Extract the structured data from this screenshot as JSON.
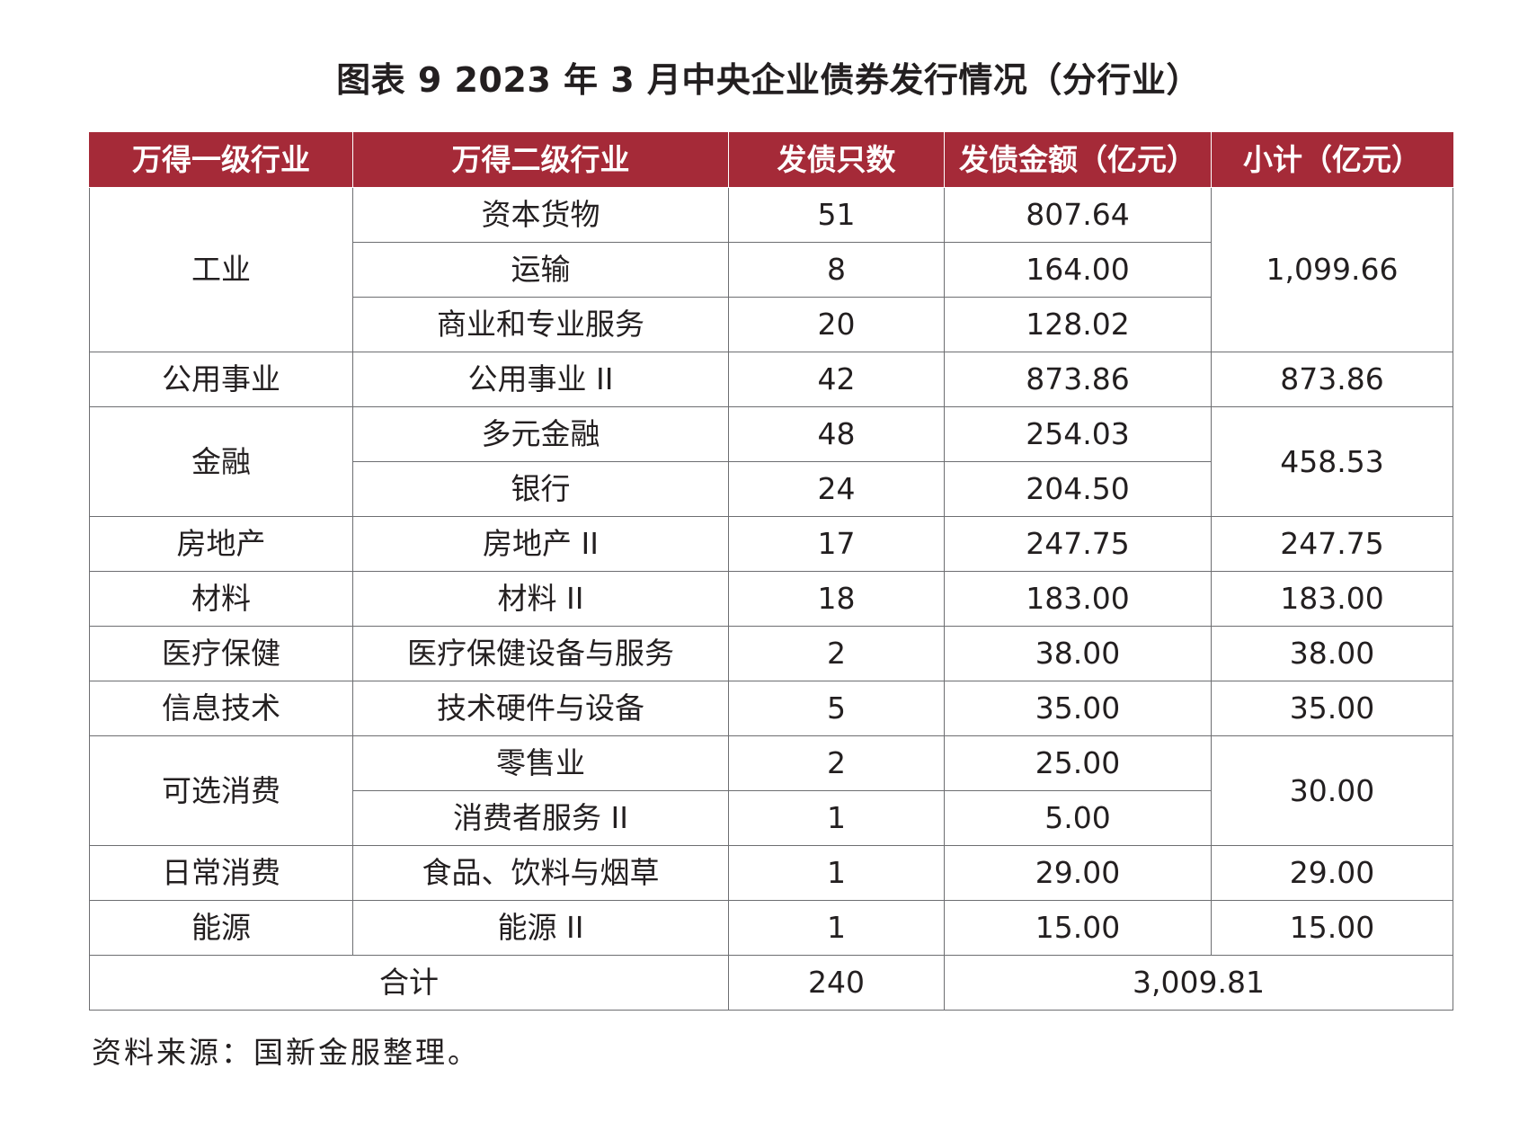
{
  "title": "图表 9  2023 年 3 月中央企业债券发行情况（分行业）",
  "table": {
    "headers": [
      "万得一级行业",
      "万得二级行业",
      "发债只数",
      "发债金额（亿元）",
      "小计（亿元）"
    ],
    "groups": [
      {
        "level1": "工业",
        "subtotal": "1,099.66",
        "rows": [
          {
            "level2": "资本货物",
            "count": "51",
            "amount": "807.64"
          },
          {
            "level2": "运输",
            "count": "8",
            "amount": "164.00"
          },
          {
            "level2": "商业和专业服务",
            "count": "20",
            "amount": "128.02"
          }
        ]
      },
      {
        "level1": "公用事业",
        "subtotal": "873.86",
        "rows": [
          {
            "level2": "公用事业 II",
            "count": "42",
            "amount": "873.86"
          }
        ]
      },
      {
        "level1": "金融",
        "subtotal": "458.53",
        "rows": [
          {
            "level2": "多元金融",
            "count": "48",
            "amount": "254.03"
          },
          {
            "level2": "银行",
            "count": "24",
            "amount": "204.50"
          }
        ]
      },
      {
        "level1": "房地产",
        "subtotal": "247.75",
        "rows": [
          {
            "level2": "房地产 II",
            "count": "17",
            "amount": "247.75"
          }
        ]
      },
      {
        "level1": "材料",
        "subtotal": "183.00",
        "rows": [
          {
            "level2": "材料 II",
            "count": "18",
            "amount": "183.00"
          }
        ]
      },
      {
        "level1": "医疗保健",
        "subtotal": "38.00",
        "rows": [
          {
            "level2": "医疗保健设备与服务",
            "count": "2",
            "amount": "38.00"
          }
        ]
      },
      {
        "level1": "信息技术",
        "subtotal": "35.00",
        "rows": [
          {
            "level2": "技术硬件与设备",
            "count": "5",
            "amount": "35.00"
          }
        ]
      },
      {
        "level1": "可选消费",
        "subtotal": "30.00",
        "rows": [
          {
            "level2": "零售业",
            "count": "2",
            "amount": "25.00"
          },
          {
            "level2": "消费者服务 II",
            "count": "1",
            "amount": "5.00"
          }
        ]
      },
      {
        "level1": "日常消费",
        "subtotal": "29.00",
        "rows": [
          {
            "level2": "食品、饮料与烟草",
            "count": "1",
            "amount": "29.00"
          }
        ]
      },
      {
        "level1": "能源",
        "subtotal": "15.00",
        "rows": [
          {
            "level2": "能源 II",
            "count": "1",
            "amount": "15.00"
          }
        ]
      }
    ],
    "total": {
      "label": "合计",
      "count": "240",
      "amount": "3,009.81"
    }
  },
  "source": "资料来源：国新金服整理。",
  "colors": {
    "header_bg": "#a52a38",
    "header_text": "#ffffff",
    "border": "#6d6e71"
  }
}
